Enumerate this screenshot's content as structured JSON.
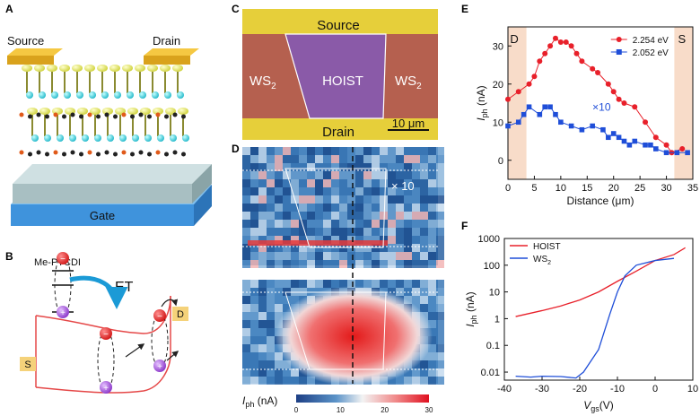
{
  "panel_labels": {
    "A": "A",
    "B": "B",
    "C": "C",
    "D": "D",
    "E": "E",
    "F": "F"
  },
  "panel_a": {
    "source": "Source",
    "drain": "Drain",
    "gate": "Gate"
  },
  "panel_b": {
    "molecule": "Me-PTCDI",
    "transfer": "ET",
    "source": "S",
    "drain": "D",
    "electron": "−",
    "hole": "+"
  },
  "panel_c": {
    "source": "Source",
    "drain": "Drain",
    "left_material": "WS",
    "right_material": "WS",
    "subscript": "2",
    "heterostructure": "HOIST",
    "scale_bar": "10 μm"
  },
  "panel_d": {
    "multiplier": "× 10",
    "colorbar_label": "I",
    "colorbar_sub": "ph",
    "colorbar_unit": " (nA)",
    "colorbar_ticks": [
      "0",
      "10",
      "20",
      "30"
    ]
  },
  "chart_data": [
    {
      "type": "line",
      "panel": "E",
      "xlabel": "Distance (μm)",
      "ylabel_main": "I",
      "ylabel_sub": "ph",
      "ylabel_unit": " (nA)",
      "xlim": [
        0,
        35
      ],
      "ylim": [
        -5,
        35
      ],
      "xticks": [
        "0",
        "5",
        "10",
        "15",
        "20",
        "25",
        "30",
        "35"
      ],
      "yticks": [
        "0",
        "10",
        "20",
        "30"
      ],
      "region_left_label": "D",
      "region_right_label": "S",
      "annotation": "×10",
      "series": [
        {
          "name": "2.254 eV",
          "color": "#e8202a",
          "marker": "circle",
          "x": [
            0,
            2,
            4,
            5,
            6,
            7,
            8,
            9,
            10,
            11,
            12,
            13,
            14,
            16,
            17,
            19,
            20,
            21,
            22,
            24,
            26,
            28,
            30,
            31,
            33
          ],
          "y": [
            16,
            18,
            20,
            22,
            26,
            28,
            30,
            32,
            31,
            31,
            30,
            28,
            26,
            24,
            23,
            20,
            18,
            16,
            15,
            14,
            10,
            6,
            4,
            2,
            3
          ]
        },
        {
          "name": "2.052 eV",
          "color": "#1f4ed8",
          "marker": "square",
          "x": [
            0,
            2,
            3,
            4,
            6,
            7,
            8,
            9,
            10,
            12,
            14,
            16,
            18,
            19,
            20,
            21,
            22,
            23,
            24,
            26,
            27,
            28,
            30,
            32,
            34
          ],
          "y": [
            9,
            10,
            12,
            14,
            12,
            14,
            14,
            12,
            10,
            9,
            8,
            9,
            8,
            6,
            7,
            6,
            5,
            4,
            5,
            4,
            4,
            3,
            2,
            2,
            2
          ]
        }
      ]
    },
    {
      "type": "line",
      "panel": "F",
      "xlabel_main": "V",
      "xlabel_sub": "gs",
      "xlabel_unit": "(V)",
      "ylabel_main": "I",
      "ylabel_sub": "ph",
      "ylabel_unit": " (nA)",
      "xlim": [
        -40,
        10
      ],
      "yscale": "log",
      "ylim": [
        0.005,
        1000
      ],
      "xticks": [
        -40,
        -30,
        -20,
        -10,
        0,
        10
      ],
      "yticks": [
        "0.01",
        "0.1",
        "1",
        "10",
        "100",
        "1000"
      ],
      "series": [
        {
          "name": "HOIST",
          "color": "#e8202a",
          "x": [
            -37,
            -30,
            -25,
            -20,
            -15,
            -10,
            -5,
            0,
            5,
            8
          ],
          "y": [
            1.2,
            2.0,
            3.0,
            5.0,
            10.0,
            25.0,
            60.0,
            150.0,
            250.0,
            450.0
          ]
        },
        {
          "name": "WS",
          "name_sub": "2",
          "color": "#1f4ed8",
          "x": [
            -37,
            -33,
            -30,
            -25,
            -21,
            -19,
            -15,
            -12,
            -10,
            -8,
            -5,
            0,
            5
          ],
          "y": [
            0.007,
            0.0065,
            0.007,
            0.0068,
            0.006,
            0.01,
            0.07,
            1.5,
            10.0,
            40.0,
            100.0,
            150.0,
            180.0
          ]
        }
      ]
    }
  ]
}
